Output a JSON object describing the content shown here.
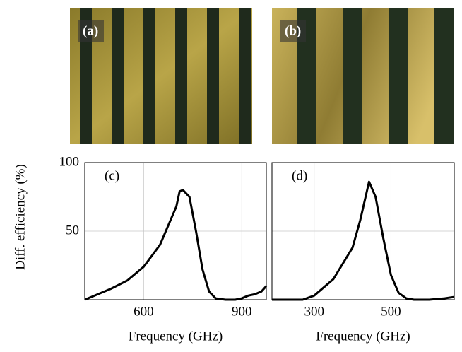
{
  "image_labels": [
    "(a)",
    "(b)"
  ],
  "chart_data": [
    {
      "type": "line",
      "ylabel": "Diff. efficiency (%)",
      "xlabel": "Frequency (GHz)",
      "annotation": "(c)",
      "x": [
        420,
        460,
        500,
        550,
        600,
        650,
        700,
        710,
        720,
        740,
        760,
        780,
        800,
        820,
        850,
        880,
        900,
        920,
        940,
        960,
        975
      ],
      "series": [
        {
          "color": "#000000",
          "values": [
            0,
            4,
            8,
            14,
            24,
            40,
            68,
            79,
            80,
            75,
            50,
            22,
            6,
            1,
            0,
            0,
            1,
            3,
            4,
            6,
            10
          ]
        }
      ],
      "xlim": [
        420,
        975
      ],
      "ylim": [
        0,
        100
      ],
      "xticks": [
        600,
        900
      ],
      "yticks": [
        50,
        100
      ],
      "grid": true,
      "show_ytick_labels": true
    },
    {
      "type": "line",
      "xlabel": "Frequency (GHz)",
      "annotation": "(d)",
      "x": [
        190,
        250,
        270,
        300,
        350,
        400,
        420,
        443,
        460,
        480,
        500,
        520,
        540,
        560,
        600,
        640,
        665
      ],
      "series": [
        {
          "color": "#000000",
          "values": [
            0,
            0,
            0,
            3,
            15,
            38,
            58,
            86,
            75,
            45,
            18,
            5,
            1,
            0,
            0,
            1,
            2
          ]
        }
      ],
      "xlim": [
        190,
        665
      ],
      "ylim": [
        0,
        100
      ],
      "xticks": [
        300,
        500
      ],
      "yticks": [
        50,
        100
      ],
      "grid": true,
      "show_ytick_labels": false
    }
  ]
}
